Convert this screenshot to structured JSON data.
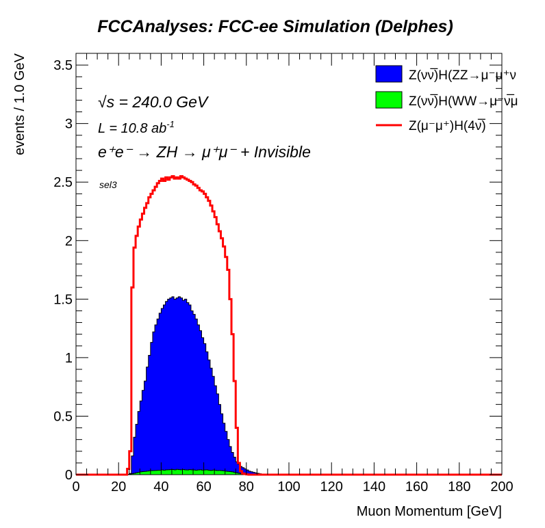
{
  "chart_data": {
    "type": "area",
    "title": "FCCAnalyses: FCC-ee Simulation (Delphes)",
    "xlabel": "Muon Momentum [GeV]",
    "ylabel": "events / 1.0 GeV",
    "xlim": [
      0,
      200
    ],
    "ylim": [
      0,
      3.6
    ],
    "x_ticks": [
      "0",
      "20",
      "40",
      "60",
      "80",
      "100",
      "120",
      "140",
      "160",
      "180",
      "200"
    ],
    "y_ticks": [
      "0",
      "0.5",
      "1",
      "1.5",
      "2",
      "2.5",
      "3",
      "3.5"
    ],
    "annotations": {
      "sqrt_s": "√s = 240.0 GeV",
      "lumi_prefix": "L = 10.8 ab",
      "lumi_exp": "-1",
      "process": "e⁺e⁻ → ZH → μ⁺μ⁻ + Invisible",
      "selection": "sel3"
    },
    "legend_position": "top-right",
    "legend": [
      {
        "label": "Z(νν̅)H(ZZ→μ⁻μ⁺ν",
        "style": "fill",
        "color": "#0000ff"
      },
      {
        "label": "Z(νν̅)H(WW→μ⁻ν̅μ",
        "style": "fill",
        "color": "#00ff00"
      },
      {
        "label": "Z(μ⁻μ⁺)H(4ν̅)",
        "style": "line",
        "color": "#ff0000"
      }
    ],
    "series": [
      {
        "name": "Z(νν̅)H(ZZ→μ⁻μ⁺ν",
        "kind": "stacked-fill",
        "color": "#0000ff",
        "x": [
          20,
          21,
          22,
          23,
          24,
          25,
          26,
          27,
          28,
          29,
          30,
          31,
          32,
          33,
          34,
          35,
          36,
          37,
          38,
          39,
          40,
          41,
          42,
          43,
          44,
          45,
          46,
          47,
          48,
          49,
          50,
          51,
          52,
          53,
          54,
          55,
          56,
          57,
          58,
          59,
          60,
          61,
          62,
          63,
          64,
          65,
          66,
          67,
          68,
          69,
          70,
          71,
          72,
          73,
          74,
          75,
          76,
          77,
          78,
          79,
          80,
          81,
          82,
          83,
          84,
          85,
          86,
          87,
          88,
          89,
          90,
          91
        ],
        "values": [
          0,
          0,
          0,
          0,
          0.003,
          0.01,
          0.16,
          0.32,
          0.43,
          0.54,
          0.63,
          0.72,
          0.8,
          0.92,
          1.02,
          1.13,
          1.22,
          1.28,
          1.33,
          1.38,
          1.42,
          1.45,
          1.48,
          1.5,
          1.51,
          1.52,
          1.5,
          1.51,
          1.52,
          1.51,
          1.49,
          1.5,
          1.47,
          1.45,
          1.4,
          1.37,
          1.33,
          1.28,
          1.23,
          1.17,
          1.12,
          1.05,
          0.98,
          0.91,
          0.84,
          0.76,
          0.69,
          0.6,
          0.52,
          0.44,
          0.37,
          0.3,
          0.24,
          0.19,
          0.15,
          0.11,
          0.09,
          0.07,
          0.06,
          0.05,
          0.04,
          0.03,
          0.025,
          0.02,
          0.015,
          0.012,
          0.008,
          0.006,
          0.004,
          0.003,
          0.002,
          0.001
        ]
      },
      {
        "name": "Z(νν̅)H(WW→μ⁻ν̅μ",
        "kind": "fill",
        "color": "#00ff00",
        "x": [
          24,
          25,
          26,
          27,
          28,
          29,
          30,
          31,
          32,
          33,
          34,
          35,
          36,
          37,
          38,
          39,
          40,
          41,
          42,
          43,
          44,
          45,
          46,
          47,
          48,
          49,
          50,
          51,
          52,
          53,
          54,
          55,
          56,
          57,
          58,
          59,
          60,
          61,
          62,
          63,
          64,
          65,
          66,
          67,
          68,
          69,
          70,
          71,
          72,
          73,
          74,
          75,
          76,
          77,
          78,
          79,
          80,
          81,
          82,
          83,
          84,
          85
        ],
        "values": [
          0.002,
          0.004,
          0.008,
          0.012,
          0.016,
          0.02,
          0.024,
          0.026,
          0.028,
          0.03,
          0.032,
          0.034,
          0.035,
          0.036,
          0.037,
          0.038,
          0.04,
          0.038,
          0.041,
          0.042,
          0.043,
          0.044,
          0.041,
          0.045,
          0.043,
          0.042,
          0.044,
          0.041,
          0.04,
          0.043,
          0.041,
          0.04,
          0.038,
          0.04,
          0.042,
          0.039,
          0.04,
          0.041,
          0.038,
          0.036,
          0.039,
          0.037,
          0.035,
          0.036,
          0.034,
          0.032,
          0.03,
          0.028,
          0.026,
          0.024,
          0.02,
          0.016,
          0.012,
          0.009,
          0.007,
          0.005,
          0.004,
          0.003,
          0.002,
          0.001,
          0.001,
          0
        ]
      },
      {
        "name": "Z(μ⁻μ⁺)H(4ν̅)",
        "kind": "line",
        "color": "#ff0000",
        "x": [
          0,
          24,
          25,
          26,
          27,
          28,
          29,
          30,
          31,
          32,
          33,
          34,
          35,
          36,
          37,
          38,
          39,
          40,
          41,
          42,
          43,
          44,
          45,
          46,
          47,
          48,
          49,
          50,
          51,
          52,
          53,
          54,
          55,
          56,
          57,
          58,
          59,
          60,
          61,
          62,
          63,
          64,
          65,
          66,
          67,
          68,
          69,
          70,
          71,
          72,
          73,
          74,
          75,
          76,
          77,
          78,
          79,
          80,
          81,
          200
        ],
        "values": [
          0,
          0.05,
          0.2,
          1.6,
          1.94,
          2.04,
          2.12,
          2.18,
          2.23,
          2.28,
          2.32,
          2.37,
          2.4,
          2.43,
          2.46,
          2.49,
          2.51,
          2.53,
          2.51,
          2.54,
          2.52,
          2.54,
          2.55,
          2.53,
          2.54,
          2.53,
          2.55,
          2.54,
          2.53,
          2.52,
          2.51,
          2.5,
          2.48,
          2.47,
          2.45,
          2.43,
          2.42,
          2.4,
          2.37,
          2.34,
          2.3,
          2.25,
          2.2,
          2.14,
          2.08,
          2.02,
          1.95,
          1.86,
          1.75,
          1.5,
          1.2,
          0.8,
          0.4,
          0.1,
          0.03,
          0.01,
          0.005,
          0.002,
          0,
          0
        ]
      }
    ]
  }
}
